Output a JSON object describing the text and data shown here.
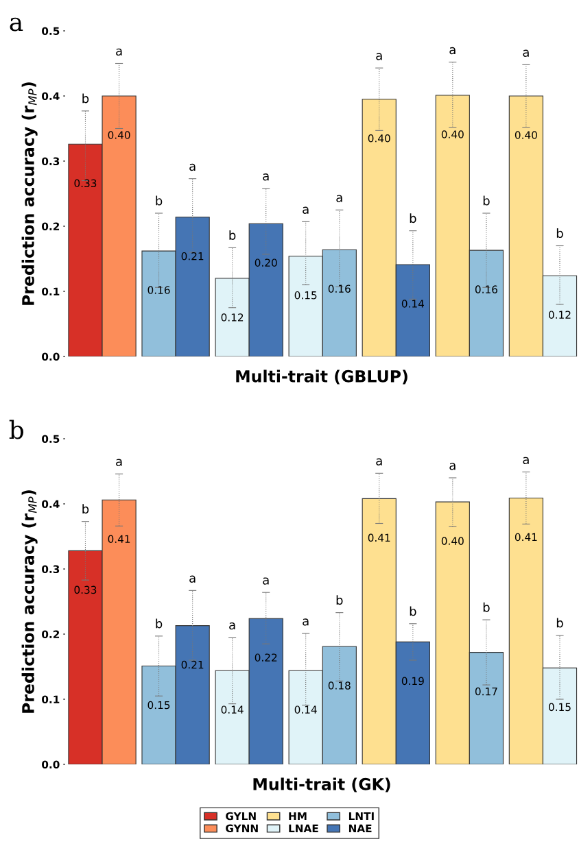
{
  "chart_data": [
    {
      "type": "bar",
      "title": "a",
      "xlabel": "Multi-trait (GBLUP)",
      "ylabel": "Prediction accuracy (r$_{MP}$)",
      "categories": [
        null,
        null,
        null,
        null,
        null,
        null,
        null,
        null,
        null,
        null,
        null,
        null,
        null,
        null
      ],
      "ylim": [
        0,
        0.5
      ],
      "yticks": [
        {
          "value": 0,
          "label": "0.0"
        },
        0.1,
        0.2,
        0.3,
        0.4,
        0.5
      ],
      "tick_labels": "y",
      "grid": false,
      "legend": "bottom",
      "stacked": true,
      "series": [
        {
          "name": "GYLN",
          "color": "#d73027",
          "values": [
            0.326,
            null,
            null,
            null,
            null,
            null,
            null,
            null,
            null,
            null,
            null,
            null,
            null,
            null
          ],
          "errors": [
            [
              0.27,
              0.377
            ],
            null,
            null,
            null,
            null,
            null,
            null,
            null,
            null,
            null,
            null,
            null,
            null,
            null
          ],
          "value_labels": [
            "0.33",
            null,
            null,
            null,
            null,
            null,
            null,
            null,
            null,
            null,
            null,
            null,
            null,
            null
          ]
        },
        {
          "name": "GYNN",
          "color": "#fc8d59",
          "values": [
            null,
            0.4,
            null,
            null,
            null,
            null,
            null,
            null,
            null,
            null,
            null,
            null,
            null,
            null
          ],
          "errors": [
            null,
            [
              0.35,
              0.45
            ],
            null,
            null,
            null,
            null,
            null,
            null,
            null,
            null,
            null,
            null,
            null,
            null
          ],
          "value_labels": [
            null,
            "0.40",
            null,
            null,
            null,
            null,
            null,
            null,
            null,
            null,
            null,
            null,
            null,
            null
          ]
        },
        {
          "name": "HM",
          "color": "#fee090",
          "values": [
            null,
            null,
            null,
            null,
            null,
            null,
            null,
            null,
            0.395,
            null,
            0.401,
            null,
            0.4,
            null
          ],
          "errors": [
            null,
            null,
            null,
            null,
            null,
            null,
            null,
            null,
            [
              0.347,
              0.443
            ],
            null,
            [
              0.352,
              0.452
            ],
            null,
            [
              0.352,
              0.448
            ],
            null
          ],
          "value_labels": [
            null,
            null,
            null,
            null,
            null,
            null,
            null,
            null,
            "0.40",
            null,
            "0.40",
            null,
            "0.40",
            null
          ]
        },
        {
          "name": "LNAE",
          "color": "#e0f3f8",
          "values": [
            null,
            null,
            null,
            null,
            0.12,
            null,
            0.154,
            null,
            null,
            null,
            null,
            null,
            null,
            0.124
          ],
          "errors": [
            null,
            null,
            null,
            null,
            [
              0.075,
              0.167
            ],
            null,
            [
              0.11,
              0.207
            ],
            null,
            null,
            null,
            null,
            null,
            null,
            [
              0.08,
              0.17
            ]
          ],
          "value_labels": [
            null,
            null,
            null,
            null,
            "0.12",
            null,
            "0.15",
            null,
            null,
            null,
            null,
            null,
            null,
            "0.12"
          ]
        },
        {
          "name": "LNTI",
          "color": "#91bfdb",
          "values": [
            null,
            null,
            0.162,
            null,
            null,
            null,
            null,
            0.164,
            null,
            null,
            null,
            0.163,
            null,
            null
          ],
          "errors": [
            null,
            null,
            [
              0.106,
              0.22
            ],
            null,
            null,
            null,
            null,
            [
              0.107,
              0.225
            ],
            null,
            null,
            null,
            [
              0.106,
              0.22
            ],
            null,
            null
          ],
          "value_labels": [
            null,
            null,
            "0.16",
            null,
            null,
            null,
            null,
            "0.16",
            null,
            null,
            null,
            "0.16",
            null,
            null
          ]
        },
        {
          "name": "NAE",
          "color": "#4575b4",
          "values": [
            null,
            null,
            null,
            0.214,
            null,
            0.204,
            null,
            null,
            null,
            0.141,
            null,
            null,
            null,
            null
          ],
          "errors": [
            null,
            null,
            null,
            [
              0.16,
              0.273
            ],
            null,
            [
              0.157,
              0.258
            ],
            null,
            null,
            null,
            [
              0.088,
              0.193
            ],
            null,
            null,
            null,
            null
          ],
          "value_labels": [
            null,
            null,
            null,
            "0.21",
            null,
            "0.20",
            null,
            null,
            null,
            "0.14",
            null,
            null,
            null,
            null
          ]
        }
      ],
      "annotations": [
        {
          "text": "b",
          "y": 0.377
        },
        {
          "text": "a",
          "y": 0.45
        },
        {
          "text": "b",
          "y": 0.22
        },
        {
          "text": "a",
          "y": 0.273
        },
        {
          "text": "b",
          "y": 0.167
        },
        {
          "text": "a",
          "y": 0.258
        },
        {
          "text": "a",
          "y": 0.207
        },
        {
          "text": "a",
          "y": 0.225
        },
        {
          "text": "a",
          "y": 0.443
        },
        {
          "text": "b",
          "y": 0.193
        },
        {
          "text": "a",
          "y": 0.452
        },
        {
          "text": "b",
          "y": 0.22
        },
        {
          "text": "a",
          "y": 0.448
        },
        {
          "text": "b",
          "y": 0.17
        }
      ]
    },
    {
      "type": "bar",
      "title": "b",
      "xlabel": "Multi-trait (GK)",
      "ylabel": "Prediction accuracy (r$_{MP}$)",
      "categories": [
        null,
        null,
        null,
        null,
        null,
        null,
        null,
        null,
        null,
        null,
        null,
        null,
        null,
        null
      ],
      "ylim": [
        0,
        0.5
      ],
      "yticks": [
        {
          "value": 0,
          "label": "0.0"
        },
        0.1,
        0.2,
        0.3,
        0.4,
        0.5
      ],
      "tick_labels": "y",
      "grid": false,
      "legend": "bottom",
      "stacked": true,
      "series": [
        {
          "color": "#d73027",
          "values": [
            0.328,
            null,
            null,
            null,
            null,
            null,
            null,
            null,
            null,
            null,
            null,
            null,
            null,
            null
          ],
          "errors": [
            [
              0.283,
              0.373
            ],
            null,
            null,
            null,
            null,
            null,
            null,
            null,
            null,
            null,
            null,
            null,
            null,
            null
          ],
          "value_labels": [
            "0.33",
            null,
            null,
            null,
            null,
            null,
            null,
            null,
            null,
            null,
            null,
            null,
            null,
            null
          ]
        },
        {
          "color": "#fc8d59",
          "values": [
            null,
            0.406,
            null,
            null,
            null,
            null,
            null,
            null,
            null,
            null,
            null,
            null,
            null,
            null
          ],
          "errors": [
            null,
            [
              0.366,
              0.446
            ],
            null,
            null,
            null,
            null,
            null,
            null,
            null,
            null,
            null,
            null,
            null,
            null
          ],
          "value_labels": [
            null,
            "0.41",
            null,
            null,
            null,
            null,
            null,
            null,
            null,
            null,
            null,
            null,
            null,
            null
          ]
        },
        {
          "color": "#fee090",
          "values": [
            null,
            null,
            null,
            null,
            null,
            null,
            null,
            null,
            0.408,
            null,
            0.403,
            null,
            0.409,
            null
          ],
          "errors": [
            null,
            null,
            null,
            null,
            null,
            null,
            null,
            null,
            [
              0.37,
              0.447
            ],
            null,
            [
              0.365,
              0.44
            ],
            null,
            [
              0.369,
              0.449
            ],
            null
          ],
          "value_labels": [
            null,
            null,
            null,
            null,
            null,
            null,
            null,
            null,
            "0.41",
            null,
            "0.40",
            null,
            "0.41",
            null
          ]
        },
        {
          "color": "#e0f3f8",
          "values": [
            null,
            null,
            null,
            null,
            0.144,
            null,
            0.144,
            null,
            null,
            null,
            null,
            null,
            null,
            0.148
          ],
          "errors": [
            null,
            null,
            null,
            null,
            [
              0.093,
              0.195
            ],
            null,
            [
              0.091,
              0.201
            ],
            null,
            null,
            null,
            null,
            null,
            null,
            [
              0.1,
              0.198
            ]
          ],
          "value_labels": [
            null,
            null,
            null,
            null,
            "0.14",
            null,
            "0.14",
            null,
            null,
            null,
            null,
            null,
            null,
            "0.15"
          ]
        },
        {
          "color": "#91bfdb",
          "values": [
            null,
            null,
            0.151,
            null,
            null,
            null,
            null,
            0.181,
            null,
            null,
            null,
            0.172,
            null,
            null
          ],
          "errors": [
            null,
            null,
            [
              0.105,
              0.197
            ],
            null,
            null,
            null,
            null,
            [
              0.128,
              0.233
            ],
            null,
            null,
            null,
            [
              0.122,
              0.222
            ],
            null,
            null
          ],
          "value_labels": [
            null,
            null,
            "0.15",
            null,
            null,
            null,
            null,
            "0.18",
            null,
            null,
            null,
            "0.17",
            null,
            null
          ]
        },
        {
          "color": "#4575b4",
          "values": [
            null,
            null,
            null,
            0.213,
            null,
            0.224,
            null,
            null,
            null,
            0.188,
            null,
            null,
            null,
            null
          ],
          "errors": [
            null,
            null,
            null,
            [
              0.16,
              0.267
            ],
            null,
            [
              0.185,
              0.264
            ],
            null,
            null,
            null,
            [
              0.16,
              0.216
            ],
            null,
            null,
            null,
            null
          ],
          "value_labels": [
            null,
            null,
            null,
            "0.21",
            null,
            "0.22",
            null,
            null,
            null,
            "0.19",
            null,
            null,
            null,
            null
          ]
        }
      ],
      "annotations": [
        {
          "text": "b",
          "y": 0.373
        },
        {
          "text": "a",
          "y": 0.446
        },
        {
          "text": "b",
          "y": 0.197
        },
        {
          "text": "a",
          "y": 0.267
        },
        {
          "text": "a",
          "y": 0.195
        },
        {
          "text": "a",
          "y": 0.264
        },
        {
          "text": "a",
          "y": 0.201
        },
        {
          "text": "b",
          "y": 0.233
        },
        {
          "text": "a",
          "y": 0.447
        },
        {
          "text": "b",
          "y": 0.216
        },
        {
          "text": "a",
          "y": 0.44
        },
        {
          "text": "b",
          "y": 0.222
        },
        {
          "text": "a",
          "y": 0.449
        },
        {
          "text": "b",
          "y": 0.198
        }
      ]
    }
  ]
}
